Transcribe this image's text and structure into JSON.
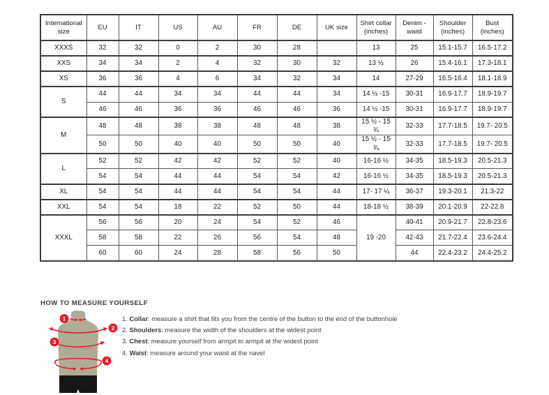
{
  "table": {
    "headers": [
      "International size",
      "EU",
      "IT",
      "US",
      "AU",
      "FR",
      "DE",
      "UK size",
      "Shirt collar (inches)",
      "Denim - waist",
      "Shoulder (inches)",
      "Bust (inches)"
    ],
    "groups": [
      {
        "size": "XXXS",
        "merged_collar": null,
        "rows": [
          [
            "32",
            "32",
            "0",
            "2",
            "30",
            "28",
            "",
            "13",
            "25",
            "15.1-15.7",
            "16.5-17.2"
          ]
        ]
      },
      {
        "size": "XXS",
        "merged_collar": null,
        "rows": [
          [
            "34",
            "34",
            "2",
            "4",
            "32",
            "30",
            "32",
            "13 ½",
            "26",
            "15.4-16.1",
            "17.3-18.1"
          ]
        ]
      },
      {
        "size": "XS",
        "merged_collar": null,
        "rows": [
          [
            "36",
            "36",
            "4",
            "6",
            "34",
            "32",
            "34",
            "14",
            "27-29",
            "16.5-16.4",
            "18.1-18.9"
          ]
        ]
      },
      {
        "size": "S",
        "merged_collar": null,
        "rows": [
          [
            "44",
            "44",
            "34",
            "34",
            "44",
            "44",
            "34",
            "14 ½ -15",
            "30-31",
            "16.9-17.7",
            "18.9-19.7"
          ],
          [
            "46",
            "46",
            "36",
            "36",
            "46",
            "46",
            "36",
            "14 ½ -15",
            "30-31",
            "16.9-17.7",
            "18.9-19.7"
          ]
        ]
      },
      {
        "size": "M",
        "merged_collar": null,
        "rows": [
          [
            "48",
            "48",
            "38",
            "38",
            "48",
            "48",
            "38",
            "15 ½ - 15 ¾",
            "32-33",
            "17.7-18.5",
            "19.7- 20.5"
          ],
          [
            "50",
            "50",
            "40",
            "40",
            "50",
            "50",
            "40",
            "15 ½ - 15 ¾",
            "32-33",
            "17.7-18.5",
            "19.7- 20.5"
          ]
        ]
      },
      {
        "size": "L",
        "merged_collar": null,
        "rows": [
          [
            "52",
            "52",
            "42",
            "42",
            "52",
            "52",
            "40",
            "16-16 ½",
            "34-35",
            "18.5-19.3",
            "20.5-21.3"
          ],
          [
            "54",
            "54",
            "44",
            "44",
            "54",
            "54",
            "42",
            "16-16 ½",
            "34-35",
            "18.5-19.3",
            "20.5-21.3"
          ]
        ]
      },
      {
        "size": "XL",
        "merged_collar": null,
        "rows": [
          [
            "54",
            "54",
            "44",
            "44",
            "54",
            "54",
            "44",
            "17- 17 ¼",
            "36-37",
            "19.3-20.1",
            "21.3-22"
          ]
        ]
      },
      {
        "size": "XXL",
        "merged_collar": null,
        "rows": [
          [
            "54",
            "54",
            "18",
            "22",
            "52",
            "50",
            "44",
            "18-18 ½",
            "38-39",
            "20.1-20.9",
            "22-22.8"
          ]
        ]
      },
      {
        "size": "XXXL",
        "merged_collar": "19 -20",
        "rows": [
          [
            "56",
            "56",
            "20",
            "24",
            "54",
            "52",
            "46",
            "40-41",
            "20.9-21.7",
            "22.8-23.6"
          ],
          [
            "58",
            "58",
            "22",
            "26",
            "56",
            "54",
            "48",
            "42-43",
            "21.7-22.4",
            "23.6-24.4"
          ],
          [
            "60",
            "60",
            "24",
            "28",
            "58",
            "56",
            "50",
            "44",
            "22.4-23.2",
            "24.4-25.2"
          ]
        ]
      }
    ]
  },
  "measure": {
    "heading": "HOW TO MEASURE YOURSELF",
    "items": [
      {
        "num": "1.",
        "label": "Collar",
        "text": "measure a shirt that fits you from the centre of the button to the end of the buttonhole"
      },
      {
        "num": "2.",
        "label": "Shoulders",
        "text": "measure the width of the shoulders at the widest point"
      },
      {
        "num": "3.",
        "label": "Chest",
        "text": "measure yourself from armpit to armpit at the widest point"
      },
      {
        "num": "4.",
        "label": "Waist",
        "text": "measure around your waist at the navel"
      }
    ],
    "badges": [
      "1",
      "2",
      "3",
      "4"
    ]
  },
  "colors": {
    "accent_red": "#e5182b",
    "body_tan": "#b1ab95",
    "shorts_black": "#161616",
    "border_dark": "#3a3a3a"
  }
}
